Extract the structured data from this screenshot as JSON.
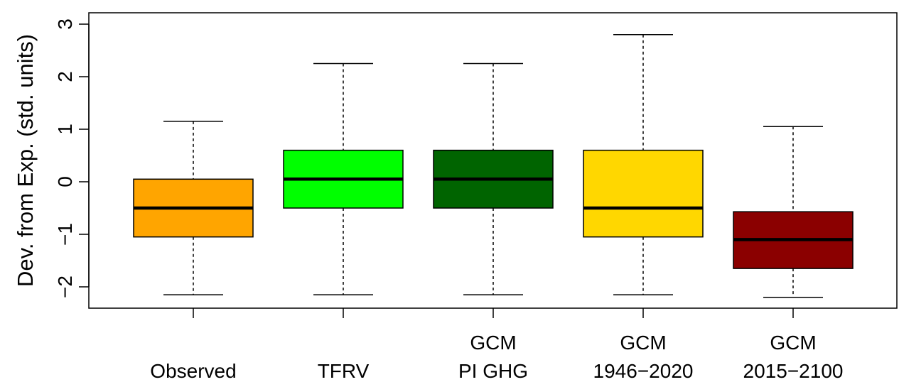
{
  "chart_data": {
    "type": "boxplot",
    "title": "",
    "xlabel": "",
    "ylabel": "Dev. from Exp. (std. units)",
    "ylim": [
      -2.4,
      3.2
    ],
    "yticks": [
      3,
      2,
      1,
      0,
      -1,
      -2
    ],
    "ytick_labels": [
      "3",
      "2",
      "1",
      "0",
      "−1",
      "−2"
    ],
    "grid": false,
    "legend": "none",
    "categories": [
      {
        "lines": [
          "Observed"
        ],
        "color": "#FFA500",
        "whisker_low": -2.15,
        "q1": -1.05,
        "median": -0.5,
        "q3": 0.05,
        "whisker_high": 1.15
      },
      {
        "lines": [
          "TFRV"
        ],
        "color": "#00FF00",
        "whisker_low": -2.15,
        "q1": -0.5,
        "median": 0.05,
        "q3": 0.6,
        "whisker_high": 2.25
      },
      {
        "lines": [
          "GCM",
          "PI GHG"
        ],
        "color": "#006400",
        "whisker_low": -2.15,
        "q1": -0.5,
        "median": 0.05,
        "q3": 0.6,
        "whisker_high": 2.25
      },
      {
        "lines": [
          "GCM",
          "1946−2020"
        ],
        "color": "#FFD700",
        "whisker_low": -2.15,
        "q1": -1.05,
        "median": -0.5,
        "q3": 0.6,
        "whisker_high": 2.8
      },
      {
        "lines": [
          "GCM",
          "2015−2100"
        ],
        "color": "#8B0000",
        "whisker_low": -2.2,
        "q1": -1.65,
        "median": -1.1,
        "q3": -0.57,
        "whisker_high": 1.05
      }
    ]
  }
}
